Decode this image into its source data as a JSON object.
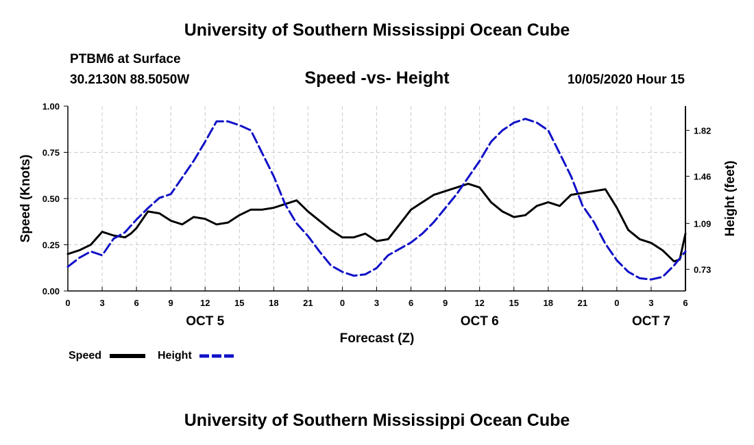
{
  "header": {
    "title": "University of Southern Mississippi Ocean Cube",
    "station": "PTBM6 at Surface",
    "coordinates": "30.2130N 88.5050W",
    "chart_title": "Speed -vs- Height",
    "run_time": "10/05/2020 Hour 15"
  },
  "footer": {
    "title": "University of Southern Mississippi Ocean Cube"
  },
  "colors": {
    "speed": "#000000",
    "height": "#1010c8",
    "grid": "#c8c8c8"
  },
  "chart_data": {
    "type": "line",
    "title": "Speed -vs- Height",
    "xlabel": "Forecast (Z)",
    "ylabel": "Speed (Knots)",
    "y2label": "Height (feet)",
    "x_range": [
      0,
      54
    ],
    "x_ticks": [
      0,
      3,
      6,
      9,
      12,
      15,
      18,
      21,
      24,
      27,
      30,
      33,
      36,
      39,
      42,
      45,
      48,
      51,
      54
    ],
    "x_tick_labels": [
      "0",
      "3",
      "6",
      "9",
      "12",
      "15",
      "18",
      "21",
      "0",
      "3",
      "6",
      "9",
      "12",
      "15",
      "18",
      "21",
      "0",
      "3",
      "6"
    ],
    "day_labels": [
      {
        "x": 12,
        "label": "OCT 5"
      },
      {
        "x": 36,
        "label": "OCT 6"
      },
      {
        "x": 51,
        "label": "OCT 7"
      }
    ],
    "ylim": [
      0,
      1
    ],
    "y_ticks": [
      0,
      0.25,
      0.5,
      0.75,
      1.0
    ],
    "y_tick_labels": [
      "0.00",
      "0.25",
      "0.50",
      "0.75",
      "1.00"
    ],
    "y2lim": [
      0.56,
      2.01
    ],
    "y2_ticks": [
      0.73,
      1.09,
      1.46,
      1.82
    ],
    "y2_tick_labels": [
      "0.73",
      "1.09",
      "1.46",
      "1.82"
    ],
    "grid": true,
    "legend": [
      {
        "name": "Speed",
        "style": "solid"
      },
      {
        "name": "Height",
        "style": "dashed"
      }
    ],
    "series": [
      {
        "name": "Speed",
        "axis": "left",
        "style": "solid",
        "x": [
          0,
          1,
          2,
          3,
          4,
          5,
          5.5,
          6,
          7,
          8,
          9,
          10,
          11,
          12,
          13,
          14,
          15,
          16,
          17,
          18,
          19,
          20,
          21,
          22,
          23,
          24,
          25,
          26,
          27,
          28,
          29,
          30,
          31,
          32,
          33,
          34,
          35,
          36,
          37,
          38,
          39,
          40,
          41,
          42,
          43,
          44,
          45,
          46,
          47,
          48,
          49,
          50,
          51,
          52,
          53,
          53.5,
          54
        ],
        "y": [
          0.2,
          0.22,
          0.25,
          0.32,
          0.3,
          0.29,
          0.31,
          0.34,
          0.43,
          0.42,
          0.38,
          0.36,
          0.4,
          0.39,
          0.36,
          0.37,
          0.41,
          0.44,
          0.44,
          0.45,
          0.47,
          0.49,
          0.43,
          0.38,
          0.33,
          0.29,
          0.29,
          0.31,
          0.27,
          0.28,
          0.36,
          0.44,
          0.48,
          0.52,
          0.54,
          0.56,
          0.58,
          0.56,
          0.48,
          0.43,
          0.4,
          0.41,
          0.46,
          0.48,
          0.46,
          0.52,
          0.53,
          0.54,
          0.55,
          0.45,
          0.33,
          0.28,
          0.26,
          0.22,
          0.16,
          0.17,
          0.31
        ]
      },
      {
        "name": "Height",
        "axis": "right",
        "style": "dashed",
        "x": [
          0,
          1,
          2,
          3,
          4,
          5,
          6,
          7,
          8,
          9,
          10,
          11,
          12,
          13,
          14,
          15,
          16,
          17,
          18,
          19,
          20,
          21,
          22,
          23,
          24,
          25,
          26,
          27,
          28,
          29,
          30,
          31,
          32,
          33,
          34,
          35,
          36,
          37,
          38,
          39,
          40,
          41,
          42,
          43,
          44,
          45,
          46,
          47,
          48,
          49,
          50,
          51,
          52,
          53,
          54
        ],
        "y": [
          0.75,
          0.82,
          0.87,
          0.84,
          0.97,
          1.02,
          1.12,
          1.21,
          1.29,
          1.32,
          1.45,
          1.58,
          1.73,
          1.89,
          1.89,
          1.86,
          1.82,
          1.64,
          1.46,
          1.24,
          1.09,
          0.99,
          0.87,
          0.76,
          0.71,
          0.68,
          0.69,
          0.74,
          0.84,
          0.89,
          0.94,
          1.01,
          1.1,
          1.21,
          1.32,
          1.45,
          1.58,
          1.73,
          1.82,
          1.88,
          1.91,
          1.88,
          1.82,
          1.64,
          1.46,
          1.23,
          1.1,
          0.93,
          0.8,
          0.71,
          0.66,
          0.65,
          0.67,
          0.76,
          0.87
        ]
      }
    ]
  }
}
